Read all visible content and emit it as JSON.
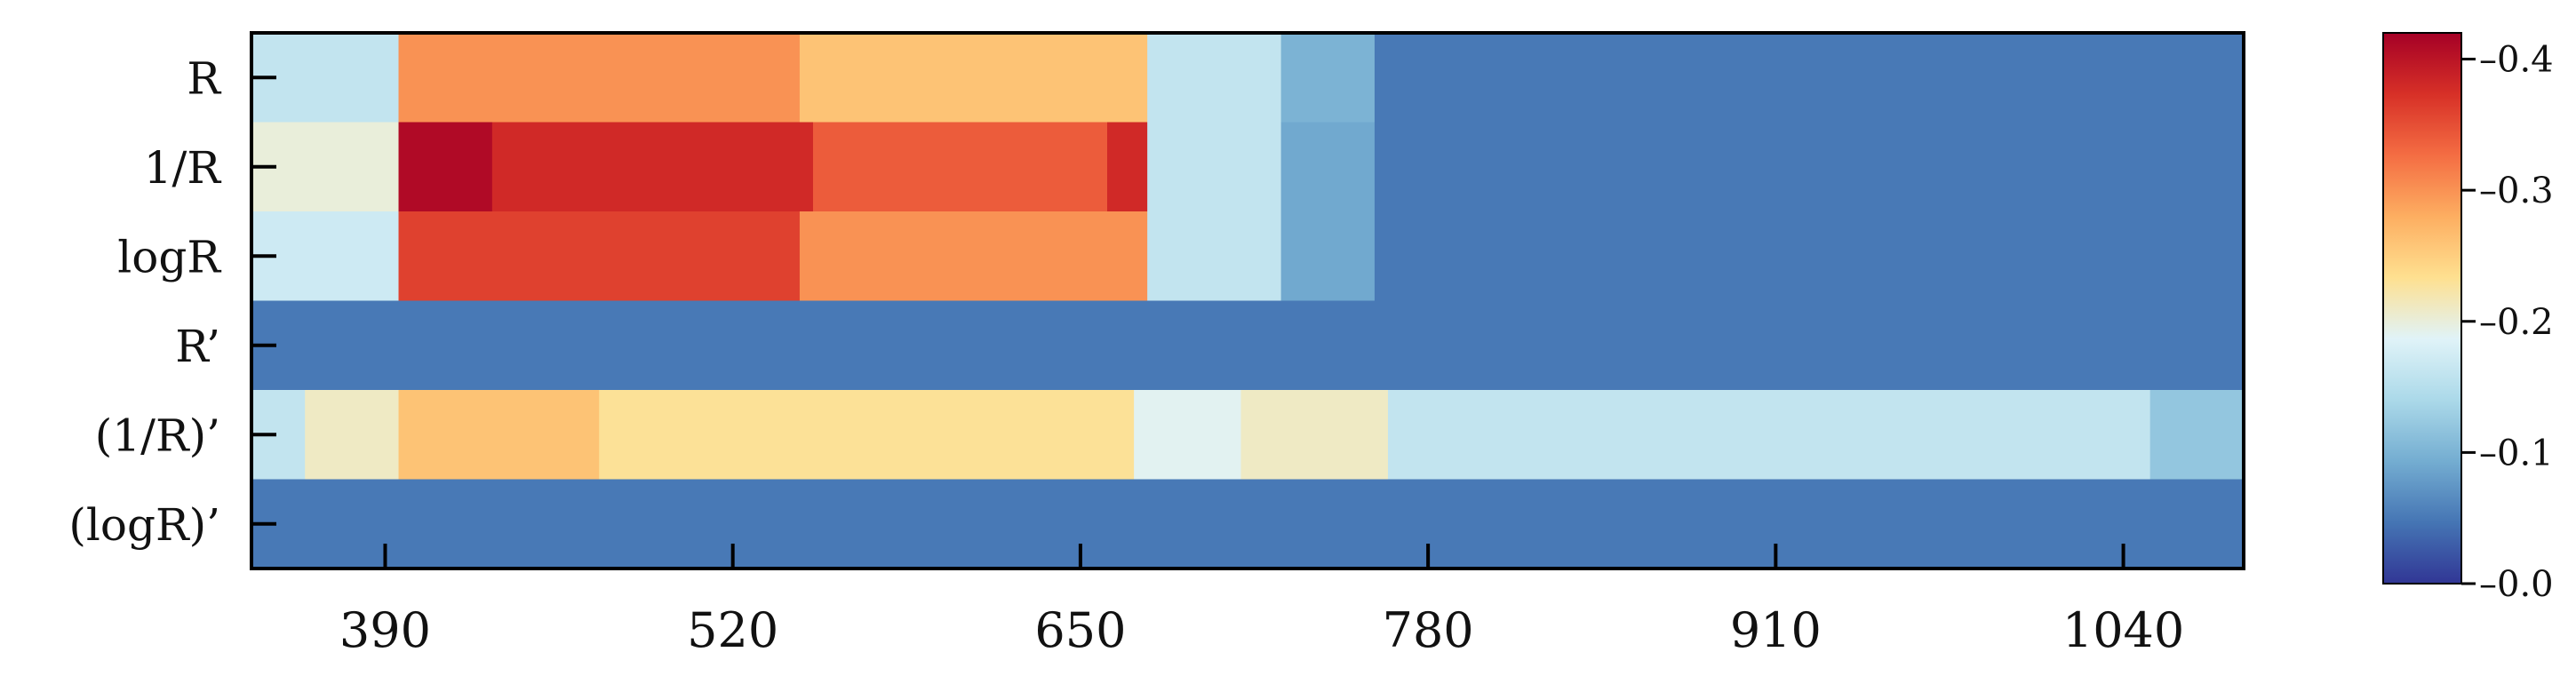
{
  "chart_data": {
    "type": "heatmap",
    "title": "",
    "xlabel": "",
    "ylabel": "",
    "rows": [
      "R",
      "1/R",
      "logR",
      "R’",
      "(1/R)’",
      "(logR)’"
    ],
    "xlim": [
      340,
      1085
    ],
    "x_ticks": [
      390,
      520,
      650,
      780,
      910,
      1040
    ],
    "x_tick_labels": [
      "390",
      "520",
      "650",
      "780",
      "910",
      "1040"
    ],
    "colorbar": {
      "range": [
        0.0,
        0.42
      ],
      "ticks": [
        0.0,
        0.1,
        0.2,
        0.3,
        0.4
      ],
      "tick_labels": [
        "0.0",
        "0.1",
        "0.2",
        "0.3",
        "0.4"
      ],
      "colormap": [
        "#313695",
        "#4575b4",
        "#74add1",
        "#abd9e9",
        "#e0f3f8",
        "#fee090",
        "#fdae61",
        "#f46d43",
        "#d73027",
        "#a50026"
      ]
    },
    "segments": [
      [
        {
          "x0": 340,
          "x1": 395,
          "value": 0.16
        },
        {
          "x0": 395,
          "x1": 545,
          "value": 0.3
        },
        {
          "x0": 545,
          "x1": 675,
          "value": 0.26
        },
        {
          "x0": 675,
          "x1": 725,
          "value": 0.16
        },
        {
          "x0": 725,
          "x1": 760,
          "value": 0.1
        },
        {
          "x0": 760,
          "x1": 1085,
          "value": 0.05
        }
      ],
      [
        {
          "x0": 340,
          "x1": 395,
          "value": 0.2
        },
        {
          "x0": 395,
          "x1": 430,
          "value": 0.41
        },
        {
          "x0": 430,
          "x1": 550,
          "value": 0.38
        },
        {
          "x0": 550,
          "x1": 660,
          "value": 0.34
        },
        {
          "x0": 660,
          "x1": 675,
          "value": 0.38
        },
        {
          "x0": 675,
          "x1": 725,
          "value": 0.16
        },
        {
          "x0": 725,
          "x1": 760,
          "value": 0.09
        },
        {
          "x0": 760,
          "x1": 1085,
          "value": 0.05
        }
      ],
      [
        {
          "x0": 340,
          "x1": 395,
          "value": 0.17
        },
        {
          "x0": 395,
          "x1": 545,
          "value": 0.36
        },
        {
          "x0": 545,
          "x1": 675,
          "value": 0.3
        },
        {
          "x0": 675,
          "x1": 725,
          "value": 0.16
        },
        {
          "x0": 725,
          "x1": 760,
          "value": 0.09
        },
        {
          "x0": 760,
          "x1": 1085,
          "value": 0.05
        }
      ],
      [
        {
          "x0": 340,
          "x1": 1085,
          "value": 0.05
        }
      ],
      [
        {
          "x0": 340,
          "x1": 360,
          "value": 0.16
        },
        {
          "x0": 360,
          "x1": 395,
          "value": 0.21
        },
        {
          "x0": 395,
          "x1": 470,
          "value": 0.26
        },
        {
          "x0": 470,
          "x1": 670,
          "value": 0.23
        },
        {
          "x0": 670,
          "x1": 710,
          "value": 0.19
        },
        {
          "x0": 710,
          "x1": 765,
          "value": 0.21
        },
        {
          "x0": 765,
          "x1": 1050,
          "value": 0.16
        },
        {
          "x0": 1050,
          "x1": 1085,
          "value": 0.12
        }
      ],
      [
        {
          "x0": 340,
          "x1": 1085,
          "value": 0.05
        }
      ]
    ]
  }
}
